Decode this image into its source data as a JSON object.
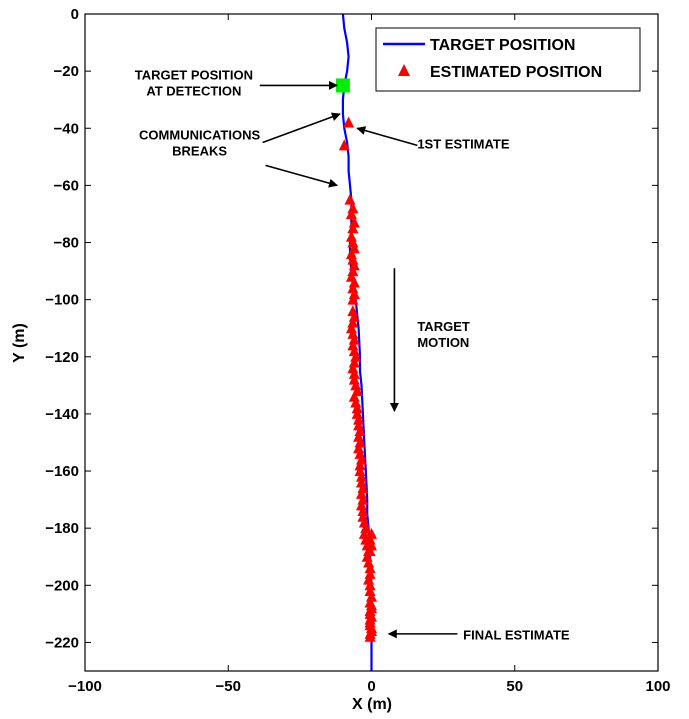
{
  "chart_data": {
    "type": "line",
    "title": "",
    "xlabel": "X (m)",
    "ylabel": "Y (m)",
    "xlim": [
      -100,
      100
    ],
    "ylim": [
      -230,
      0
    ],
    "xticks": [
      -100,
      -50,
      0,
      50,
      100
    ],
    "yticks": [
      0,
      -20,
      -40,
      -60,
      -80,
      -100,
      -120,
      -140,
      -160,
      -180,
      -200,
      -220
    ],
    "grid": false,
    "legend_position": "top-right",
    "colors": {
      "target_line": "#0000ff",
      "estimates": "#ff0000",
      "detection": "#00ee00",
      "axes": "#000000"
    },
    "series": [
      {
        "name": "TARGET POSITION",
        "kind": "line",
        "x": [
          -10,
          -9.5,
          -8.5,
          -8,
          -8.5,
          -9.5,
          -10,
          -10,
          -9.5,
          -8.5,
          -8,
          -8,
          -7.5,
          -7,
          -7,
          -7,
          -7.5,
          -7.5,
          -7,
          -6,
          -5.5,
          -4.5,
          -4,
          -4,
          -3.5,
          -3,
          -2.5,
          -2,
          -1.5,
          -1.5,
          -1,
          -0.5,
          0,
          0,
          0,
          0,
          0
        ],
        "y": [
          0,
          -5,
          -10,
          -15,
          -20,
          -25,
          -30,
          -35,
          -40,
          -45,
          -50,
          -55,
          -60,
          -65,
          -70,
          -75,
          -80,
          -85,
          -90,
          -95,
          -100,
          -110,
          -120,
          -125,
          -130,
          -140,
          -150,
          -160,
          -170,
          -175,
          -180,
          -190,
          -200,
          -205,
          -210,
          -220,
          -230
        ]
      },
      {
        "name": "ESTIMATED POSITION",
        "kind": "scatter",
        "marker": "triangle",
        "x": [
          -8,
          -9.5,
          -7.5,
          -6.5,
          -7,
          -6,
          -6.5,
          -7,
          -6.5,
          -6,
          -7,
          -6.5,
          -6,
          -6.5,
          -7,
          -6,
          -6.5,
          -6,
          -6.5,
          -6.5,
          -6,
          -6.5,
          -7,
          -6.5,
          -6,
          -6.5,
          -6,
          -5.5,
          -6,
          -6.5,
          -6,
          -6,
          -5.5,
          -5,
          -6,
          -5.5,
          -5,
          -5,
          -4.5,
          -4.5,
          -4,
          -4.5,
          -4,
          -4.5,
          -4,
          -3.5,
          -4,
          -4,
          -3.5,
          -3.5,
          -3,
          -3.5,
          -3,
          -3.5,
          -3,
          -3,
          -2.5,
          -2,
          -2.5,
          -2,
          -1.5,
          -1,
          -1.5,
          -1,
          -0.5,
          -0.5,
          -1,
          -0.5,
          -0.5,
          0,
          -0.5,
          0,
          -0.5,
          -0.5,
          -0.5,
          0,
          -0.5,
          0,
          -0.5,
          0,
          -0.5,
          0,
          -0.5,
          0,
          -0.5,
          0,
          -0.5
        ],
        "y": [
          -38,
          -46,
          -65,
          -68,
          -70,
          -73,
          -75,
          -78,
          -80,
          -82,
          -84,
          -86,
          -88,
          -90,
          -92,
          -94,
          -96,
          -98,
          -100,
          -104,
          -106,
          -108,
          -110,
          -112,
          -114,
          -116,
          -118,
          -120,
          -122,
          -124,
          -126,
          -128,
          -130,
          -132,
          -134,
          -136,
          -138,
          -140,
          -142,
          -144,
          -146,
          -148,
          -150,
          -152,
          -154,
          -156,
          -158,
          -160,
          -162,
          -164,
          -166,
          -168,
          -170,
          -172,
          -174,
          -176,
          -178,
          -180,
          -182,
          -184,
          -186,
          -188,
          -190,
          -192,
          -194,
          -196,
          -198,
          -200,
          -202,
          -204,
          -206,
          -208,
          -210,
          -212,
          -214,
          -216,
          -218,
          -207,
          -209,
          -211,
          -213,
          -215,
          -217,
          -182,
          -184,
          -186,
          -188
        ]
      },
      {
        "name": "",
        "kind": "marker",
        "marker": "square",
        "x": [
          -10
        ],
        "y": [
          -25
        ]
      }
    ],
    "annotations": [
      {
        "lines": [
          "TARGET POSITION",
          "AT DETECTION"
        ],
        "text_at": [
          -62,
          -23
        ],
        "arrow_from": [
          -39,
          -25
        ],
        "arrow_to": [
          -12,
          -25
        ],
        "align": "middle"
      },
      {
        "lines": [
          "COMMUNICATIONS",
          "BREAKS"
        ],
        "text_at": [
          -60,
          -44
        ],
        "arrow_from": [
          -38,
          -45
        ],
        "arrow_to": [
          -11,
          -35
        ],
        "align": "middle"
      },
      {
        "lines": [],
        "text_at": [
          0,
          0
        ],
        "arrow_from": [
          -37,
          -53
        ],
        "arrow_to": [
          -12,
          -60
        ],
        "align": "middle"
      },
      {
        "lines": [
          "1ST ESTIMATE"
        ],
        "text_at": [
          16,
          -47
        ],
        "arrow_from": [
          16,
          -46
        ],
        "arrow_to": [
          -5,
          -40
        ],
        "align": "start"
      },
      {
        "lines": [
          "FINAL ESTIMATE"
        ],
        "text_at": [
          32,
          -219
        ],
        "arrow_from": [
          30,
          -217
        ],
        "arrow_to": [
          6,
          -217
        ],
        "align": "start"
      },
      {
        "lines": [
          "TARGET",
          "MOTION"
        ],
        "text_at": [
          16,
          -111
        ],
        "arrow_from": [
          8,
          -89
        ],
        "arrow_to": [
          8,
          -139
        ],
        "align": "start"
      }
    ]
  }
}
